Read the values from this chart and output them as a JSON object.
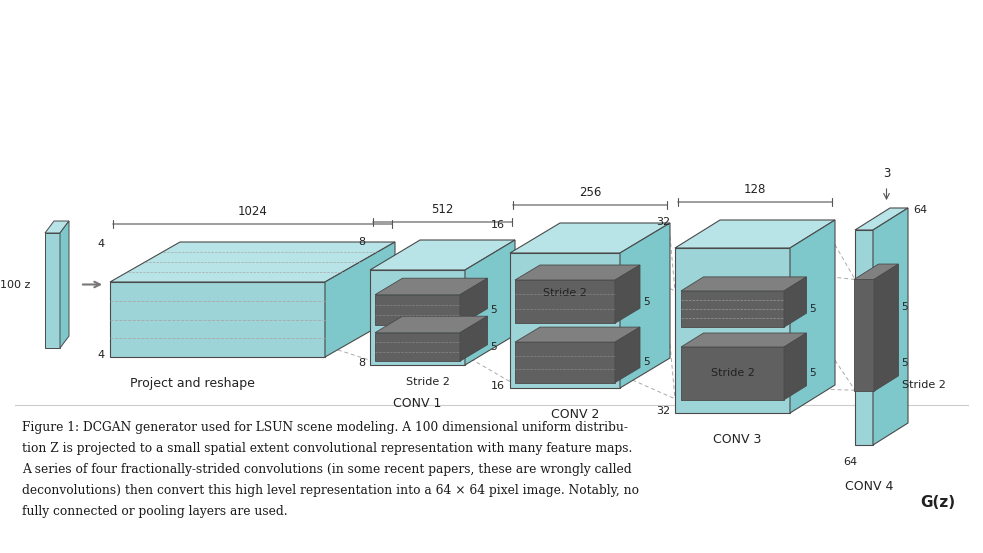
{
  "bg_color": "#ffffff",
  "teal_face": "#9dd4d8",
  "teal_dark": "#6cb8be",
  "teal_top": "#b8e4e8",
  "teal_side": "#7ec8cc",
  "dark_face": "#606060",
  "dark_top": "#808080",
  "dark_side": "#505050",
  "edge_color": "#4a4a4a",
  "line_color": "#999999",
  "text_color": "#222222",
  "caption_lines": [
    "Figure 1: DCGAN generator used for LSUN scene modeling. A 100 dimensional uniform distribu-",
    "tion Z is projected to a small spatial extent convolutional representation with many feature maps.",
    "A series of four fractionally-strided convolutions (in some recent papers, these are wrongly called",
    "deconvolutions) then convert this high level representation into a 64 × 64 pixel image. Notably, no",
    "fully connected or pooling layers are used."
  ]
}
